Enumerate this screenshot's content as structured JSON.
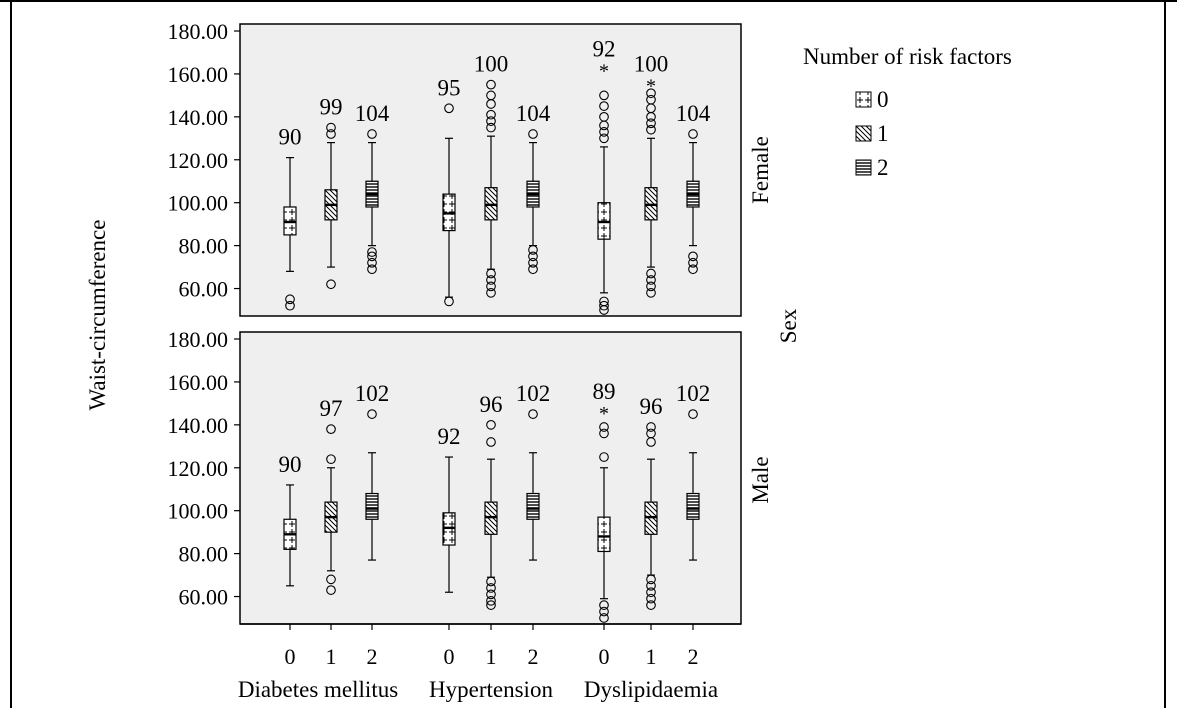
{
  "chart_data": {
    "type": "box",
    "title": "",
    "xlabel": "",
    "ylabel": "Waist-circumference",
    "ylim": [
      50,
      180
    ],
    "y_ticks": [
      "60.00",
      "80.00",
      "100.00",
      "120.00",
      "140.00",
      "160.00",
      "180.00"
    ],
    "groups": [
      "Diabetes mellitus",
      "Hypertension",
      "Dyslipidaemia"
    ],
    "categories": [
      "0",
      "1",
      "2"
    ],
    "facet_title": "Sex",
    "facets": [
      "Female",
      "Male"
    ],
    "legend": {
      "title": "Number of risk factors",
      "position": "right",
      "entries": [
        {
          "label": "0",
          "pattern": "plus"
        },
        {
          "label": "1",
          "pattern": "diagonal"
        },
        {
          "label": "2",
          "pattern": "horizontal"
        }
      ]
    },
    "series": [
      {
        "facet": "Female",
        "boxes": [
          {
            "group": "Diabetes mellitus",
            "category": "0",
            "label": "90",
            "q1": 85,
            "median": 91,
            "q3": 98,
            "whisker_low": 68,
            "whisker_high": 121,
            "outliers": [
              52,
              55
            ],
            "extremes": []
          },
          {
            "group": "Diabetes mellitus",
            "category": "1",
            "label": "99",
            "q1": 92,
            "median": 99,
            "q3": 106,
            "whisker_low": 70,
            "whisker_high": 128,
            "outliers": [
              62,
              132,
              135
            ],
            "extremes": []
          },
          {
            "group": "Diabetes mellitus",
            "category": "2",
            "label": "104",
            "q1": 98,
            "median": 104,
            "q3": 110,
            "whisker_low": 80,
            "whisker_high": 128,
            "outliers": [
              69,
              72,
              75,
              77,
              132
            ],
            "extremes": []
          },
          {
            "group": "Hypertension",
            "category": "0",
            "label": "95",
            "q1": 87,
            "median": 95,
            "q3": 104,
            "whisker_low": 56,
            "whisker_high": 130,
            "outliers": [
              54,
              144
            ],
            "extremes": []
          },
          {
            "group": "Hypertension",
            "category": "1",
            "label": "100",
            "q1": 92,
            "median": 99,
            "q3": 107,
            "whisker_low": 69,
            "whisker_high": 131,
            "outliers": [
              58,
              61,
              64,
              67,
              135,
              138,
              141,
              146,
              150,
              155
            ],
            "extremes": []
          },
          {
            "group": "Hypertension",
            "category": "2",
            "label": "104",
            "q1": 98,
            "median": 104,
            "q3": 110,
            "whisker_low": 80,
            "whisker_high": 128,
            "outliers": [
              69,
              72,
              75,
              78,
              132
            ],
            "extremes": []
          },
          {
            "group": "Dyslipidaemia",
            "category": "0",
            "label": "92",
            "q1": 83,
            "median": 91,
            "q3": 100,
            "whisker_low": 58,
            "whisker_high": 126,
            "outliers": [
              50,
              52,
              54,
              130,
              133,
              136,
              140,
              145,
              150
            ],
            "extremes": [
              162
            ]
          },
          {
            "group": "Dyslipidaemia",
            "category": "1",
            "label": "100",
            "q1": 92,
            "median": 99,
            "q3": 107,
            "whisker_low": 70,
            "whisker_high": 130,
            "outliers": [
              58,
              61,
              64,
              67,
              134,
              137,
              140,
              144,
              148,
              151
            ],
            "extremes": [
              155
            ]
          },
          {
            "group": "Dyslipidaemia",
            "category": "2",
            "label": "104",
            "q1": 98,
            "median": 104,
            "q3": 110,
            "whisker_low": 80,
            "whisker_high": 128,
            "outliers": [
              69,
              72,
              75,
              132
            ],
            "extremes": []
          }
        ]
      },
      {
        "facet": "Male",
        "boxes": [
          {
            "group": "Diabetes mellitus",
            "category": "0",
            "label": "90",
            "q1": 82,
            "median": 89,
            "q3": 96,
            "whisker_low": 65,
            "whisker_high": 112,
            "outliers": [],
            "extremes": []
          },
          {
            "group": "Diabetes mellitus",
            "category": "1",
            "label": "97",
            "q1": 90,
            "median": 97,
            "q3": 104,
            "whisker_low": 72,
            "whisker_high": 120,
            "outliers": [
              63,
              68,
              124,
              138
            ],
            "extremes": []
          },
          {
            "group": "Diabetes mellitus",
            "category": "2",
            "label": "102",
            "q1": 96,
            "median": 101,
            "q3": 108,
            "whisker_low": 77,
            "whisker_high": 127,
            "outliers": [
              145
            ],
            "extremes": []
          },
          {
            "group": "Hypertension",
            "category": "0",
            "label": "92",
            "q1": 84,
            "median": 92,
            "q3": 99,
            "whisker_low": 62,
            "whisker_high": 125,
            "outliers": [],
            "extremes": []
          },
          {
            "group": "Hypertension",
            "category": "1",
            "label": "96",
            "q1": 89,
            "median": 97,
            "q3": 104,
            "whisker_low": 69,
            "whisker_high": 124,
            "outliers": [
              56,
              58,
              61,
              64,
              67,
              132,
              140
            ],
            "extremes": []
          },
          {
            "group": "Hypertension",
            "category": "2",
            "label": "102",
            "q1": 96,
            "median": 101,
            "q3": 108,
            "whisker_low": 77,
            "whisker_high": 127,
            "outliers": [
              145
            ],
            "extremes": []
          },
          {
            "group": "Dyslipidaemia",
            "category": "0",
            "label": "89",
            "q1": 81,
            "median": 88,
            "q3": 97,
            "whisker_low": 59,
            "whisker_high": 120,
            "outliers": [
              50,
              53,
              56,
              125,
              136,
              139
            ],
            "extremes": [
              146
            ]
          },
          {
            "group": "Dyslipidaemia",
            "category": "1",
            "label": "96",
            "q1": 89,
            "median": 97,
            "q3": 104,
            "whisker_low": 70,
            "whisker_high": 124,
            "outliers": [
              56,
              59,
              62,
              65,
              68,
              132,
              136,
              139
            ],
            "extremes": []
          },
          {
            "group": "Dyslipidaemia",
            "category": "2",
            "label": "102",
            "q1": 96,
            "median": 101,
            "q3": 108,
            "whisker_low": 77,
            "whisker_high": 127,
            "outliers": [
              145
            ],
            "extremes": []
          }
        ]
      }
    ]
  }
}
